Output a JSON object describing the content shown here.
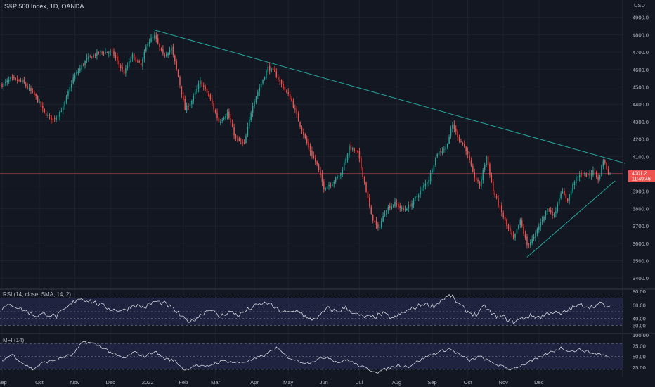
{
  "header": {
    "title": "S&P 500 Index, 1D, OANDA",
    "currency": "USD"
  },
  "price_badge": {
    "price": "4001.2",
    "countdown": "11:49:46"
  },
  "rsi_label": "RSI (14, close, SMA, 14, 2)",
  "mfi_label": "MFI (14)",
  "colors": {
    "background": "#131722",
    "grid": "#1e222d",
    "up": "#26a69a",
    "down": "#ef5350",
    "trendline": "#26a69a",
    "band_fill": "#2a2e5a",
    "oscillator": "#d1d4dc",
    "price_line": "#ef5350"
  },
  "chart_data": [
    {
      "type": "candlestick",
      "title": "S&P 500 Index, 1D, OANDA",
      "x_ticks": [
        "Sep",
        "Oct",
        "Nov",
        "Dec",
        "2022",
        "Feb",
        "Mar",
        "Apr",
        "May",
        "Jun",
        "Jul",
        "Aug",
        "Sep",
        "Oct",
        "Nov",
        "Dec"
      ],
      "y_ticks": [
        3400,
        3500,
        3600,
        3700,
        3800,
        3900,
        4000,
        4100,
        4200,
        4300,
        4400,
        4500,
        4600,
        4700,
        4800,
        4900
      ],
      "ylim": [
        3340,
        5000
      ],
      "grid": true,
      "anchors": [
        {
          "x": 0,
          "y": 4510
        },
        {
          "x": 5,
          "y": 4545
        },
        {
          "x": 12,
          "y": 4530
        },
        {
          "x": 20,
          "y": 4440
        },
        {
          "x": 25,
          "y": 4350
        },
        {
          "x": 30,
          "y": 4310
        },
        {
          "x": 36,
          "y": 4380
        },
        {
          "x": 42,
          "y": 4550
        },
        {
          "x": 50,
          "y": 4660
        },
        {
          "x": 58,
          "y": 4700
        },
        {
          "x": 65,
          "y": 4700
        },
        {
          "x": 72,
          "y": 4580
        },
        {
          "x": 77,
          "y": 4680
        },
        {
          "x": 82,
          "y": 4620
        },
        {
          "x": 86,
          "y": 4760
        },
        {
          "x": 90,
          "y": 4790
        },
        {
          "x": 95,
          "y": 4680
        },
        {
          "x": 100,
          "y": 4720
        },
        {
          "x": 104,
          "y": 4560
        },
        {
          "x": 108,
          "y": 4370
        },
        {
          "x": 112,
          "y": 4420
        },
        {
          "x": 117,
          "y": 4530
        },
        {
          "x": 122,
          "y": 4450
        },
        {
          "x": 128,
          "y": 4300
        },
        {
          "x": 133,
          "y": 4350
        },
        {
          "x": 138,
          "y": 4200
        },
        {
          "x": 143,
          "y": 4170
        },
        {
          "x": 148,
          "y": 4400
        },
        {
          "x": 153,
          "y": 4520
        },
        {
          "x": 157,
          "y": 4610
        },
        {
          "x": 161,
          "y": 4580
        },
        {
          "x": 166,
          "y": 4500
        },
        {
          "x": 171,
          "y": 4420
        },
        {
          "x": 176,
          "y": 4280
        },
        {
          "x": 181,
          "y": 4150
        },
        {
          "x": 186,
          "y": 4050
        },
        {
          "x": 190,
          "y": 3920
        },
        {
          "x": 195,
          "y": 3950
        },
        {
          "x": 200,
          "y": 4000
        },
        {
          "x": 205,
          "y": 4150
        },
        {
          "x": 210,
          "y": 4120
        },
        {
          "x": 214,
          "y": 3950
        },
        {
          "x": 218,
          "y": 3760
        },
        {
          "x": 222,
          "y": 3680
        },
        {
          "x": 227,
          "y": 3800
        },
        {
          "x": 232,
          "y": 3830
        },
        {
          "x": 237,
          "y": 3790
        },
        {
          "x": 242,
          "y": 3830
        },
        {
          "x": 247,
          "y": 3900
        },
        {
          "x": 252,
          "y": 3970
        },
        {
          "x": 257,
          "y": 4120
        },
        {
          "x": 262,
          "y": 4150
        },
        {
          "x": 266,
          "y": 4280
        },
        {
          "x": 270,
          "y": 4200
        },
        {
          "x": 274,
          "y": 4140
        },
        {
          "x": 278,
          "y": 4000
        },
        {
          "x": 282,
          "y": 3930
        },
        {
          "x": 286,
          "y": 4100
        },
        {
          "x": 290,
          "y": 3900
        },
        {
          "x": 294,
          "y": 3800
        },
        {
          "x": 298,
          "y": 3700
        },
        {
          "x": 302,
          "y": 3620
        },
        {
          "x": 306,
          "y": 3730
        },
        {
          "x": 310,
          "y": 3590
        },
        {
          "x": 314,
          "y": 3630
        },
        {
          "x": 318,
          "y": 3720
        },
        {
          "x": 322,
          "y": 3800
        },
        {
          "x": 326,
          "y": 3760
        },
        {
          "x": 330,
          "y": 3900
        },
        {
          "x": 334,
          "y": 3850
        },
        {
          "x": 338,
          "y": 3960
        },
        {
          "x": 342,
          "y": 4000
        },
        {
          "x": 346,
          "y": 3990
        },
        {
          "x": 350,
          "y": 4020
        },
        {
          "x": 352,
          "y": 3960
        },
        {
          "x": 355,
          "y": 4080
        },
        {
          "x": 358,
          "y": 4010
        }
      ],
      "trendlines": [
        {
          "x1": 89,
          "y1": 4830,
          "x2": 368,
          "y2": 4060
        },
        {
          "x1": 310,
          "y1": 3520,
          "x2": 362,
          "y2": 3960
        }
      ],
      "last_price": 4001.2
    },
    {
      "type": "line",
      "title": "RSI (14, close, SMA, 14, 2)",
      "y_ticks": [
        30,
        40,
        60,
        80
      ],
      "ylim": [
        20,
        82
      ],
      "band": [
        30,
        70
      ],
      "dashed_levels": [
        40,
        50,
        60
      ],
      "anchors": [
        {
          "x": 0,
          "y": 55
        },
        {
          "x": 6,
          "y": 60
        },
        {
          "x": 13,
          "y": 52
        },
        {
          "x": 20,
          "y": 44
        },
        {
          "x": 26,
          "y": 47
        },
        {
          "x": 32,
          "y": 43
        },
        {
          "x": 38,
          "y": 55
        },
        {
          "x": 45,
          "y": 70
        },
        {
          "x": 52,
          "y": 66
        },
        {
          "x": 58,
          "y": 60
        },
        {
          "x": 65,
          "y": 53
        },
        {
          "x": 72,
          "y": 52
        },
        {
          "x": 78,
          "y": 60
        },
        {
          "x": 84,
          "y": 56
        },
        {
          "x": 90,
          "y": 65
        },
        {
          "x": 96,
          "y": 62
        },
        {
          "x": 102,
          "y": 52
        },
        {
          "x": 108,
          "y": 38
        },
        {
          "x": 112,
          "y": 36
        },
        {
          "x": 117,
          "y": 45
        },
        {
          "x": 123,
          "y": 55
        },
        {
          "x": 128,
          "y": 42
        },
        {
          "x": 134,
          "y": 50
        },
        {
          "x": 140,
          "y": 45
        },
        {
          "x": 145,
          "y": 53
        },
        {
          "x": 151,
          "y": 60
        },
        {
          "x": 157,
          "y": 63
        },
        {
          "x": 163,
          "y": 52
        },
        {
          "x": 169,
          "y": 48
        },
        {
          "x": 175,
          "y": 52
        },
        {
          "x": 181,
          "y": 38
        },
        {
          "x": 187,
          "y": 42
        },
        {
          "x": 192,
          "y": 55
        },
        {
          "x": 198,
          "y": 50
        },
        {
          "x": 203,
          "y": 56
        },
        {
          "x": 209,
          "y": 46
        },
        {
          "x": 214,
          "y": 42
        },
        {
          "x": 219,
          "y": 42
        },
        {
          "x": 225,
          "y": 47
        },
        {
          "x": 231,
          "y": 40
        },
        {
          "x": 237,
          "y": 49
        },
        {
          "x": 243,
          "y": 55
        },
        {
          "x": 249,
          "y": 62
        },
        {
          "x": 255,
          "y": 58
        },
        {
          "x": 260,
          "y": 68
        },
        {
          "x": 265,
          "y": 74
        },
        {
          "x": 270,
          "y": 60
        },
        {
          "x": 275,
          "y": 50
        },
        {
          "x": 280,
          "y": 45
        },
        {
          "x": 285,
          "y": 58
        },
        {
          "x": 290,
          "y": 45
        },
        {
          "x": 296,
          "y": 42
        },
        {
          "x": 302,
          "y": 35
        },
        {
          "x": 307,
          "y": 40
        },
        {
          "x": 312,
          "y": 44
        },
        {
          "x": 318,
          "y": 42
        },
        {
          "x": 324,
          "y": 50
        },
        {
          "x": 330,
          "y": 46
        },
        {
          "x": 336,
          "y": 55
        },
        {
          "x": 342,
          "y": 60
        },
        {
          "x": 348,
          "y": 57
        },
        {
          "x": 354,
          "y": 62
        },
        {
          "x": 358,
          "y": 55
        }
      ]
    },
    {
      "type": "line",
      "title": "MFI (14)",
      "y_ticks": [
        25,
        50,
        75,
        100
      ],
      "ylim": [
        5,
        100
      ],
      "band": [
        20,
        80
      ],
      "dashed_levels": [
        50
      ],
      "anchors": [
        {
          "x": 0,
          "y": 40
        },
        {
          "x": 6,
          "y": 55
        },
        {
          "x": 12,
          "y": 35
        },
        {
          "x": 18,
          "y": 20
        },
        {
          "x": 24,
          "y": 35
        },
        {
          "x": 30,
          "y": 40
        },
        {
          "x": 36,
          "y": 48
        },
        {
          "x": 42,
          "y": 55
        },
        {
          "x": 48,
          "y": 85
        },
        {
          "x": 54,
          "y": 80
        },
        {
          "x": 60,
          "y": 70
        },
        {
          "x": 66,
          "y": 55
        },
        {
          "x": 72,
          "y": 45
        },
        {
          "x": 78,
          "y": 60
        },
        {
          "x": 84,
          "y": 50
        },
        {
          "x": 90,
          "y": 62
        },
        {
          "x": 96,
          "y": 45
        },
        {
          "x": 102,
          "y": 40
        },
        {
          "x": 108,
          "y": 18
        },
        {
          "x": 114,
          "y": 30
        },
        {
          "x": 120,
          "y": 25
        },
        {
          "x": 126,
          "y": 35
        },
        {
          "x": 132,
          "y": 40
        },
        {
          "x": 138,
          "y": 35
        },
        {
          "x": 144,
          "y": 38
        },
        {
          "x": 150,
          "y": 45
        },
        {
          "x": 156,
          "y": 55
        },
        {
          "x": 162,
          "y": 70
        },
        {
          "x": 168,
          "y": 50
        },
        {
          "x": 174,
          "y": 40
        },
        {
          "x": 180,
          "y": 35
        },
        {
          "x": 186,
          "y": 42
        },
        {
          "x": 192,
          "y": 50
        },
        {
          "x": 198,
          "y": 36
        },
        {
          "x": 204,
          "y": 42
        },
        {
          "x": 210,
          "y": 30
        },
        {
          "x": 216,
          "y": 20
        },
        {
          "x": 222,
          "y": 14
        },
        {
          "x": 228,
          "y": 22
        },
        {
          "x": 234,
          "y": 30
        },
        {
          "x": 240,
          "y": 26
        },
        {
          "x": 246,
          "y": 40
        },
        {
          "x": 252,
          "y": 52
        },
        {
          "x": 258,
          "y": 60
        },
        {
          "x": 264,
          "y": 68
        },
        {
          "x": 270,
          "y": 55
        },
        {
          "x": 276,
          "y": 40
        },
        {
          "x": 282,
          "y": 50
        },
        {
          "x": 288,
          "y": 38
        },
        {
          "x": 294,
          "y": 28
        },
        {
          "x": 300,
          "y": 20
        },
        {
          "x": 306,
          "y": 28
        },
        {
          "x": 312,
          "y": 38
        },
        {
          "x": 318,
          "y": 48
        },
        {
          "x": 324,
          "y": 60
        },
        {
          "x": 330,
          "y": 70
        },
        {
          "x": 336,
          "y": 62
        },
        {
          "x": 342,
          "y": 66
        },
        {
          "x": 348,
          "y": 58
        },
        {
          "x": 354,
          "y": 55
        },
        {
          "x": 358,
          "y": 48
        }
      ]
    }
  ]
}
